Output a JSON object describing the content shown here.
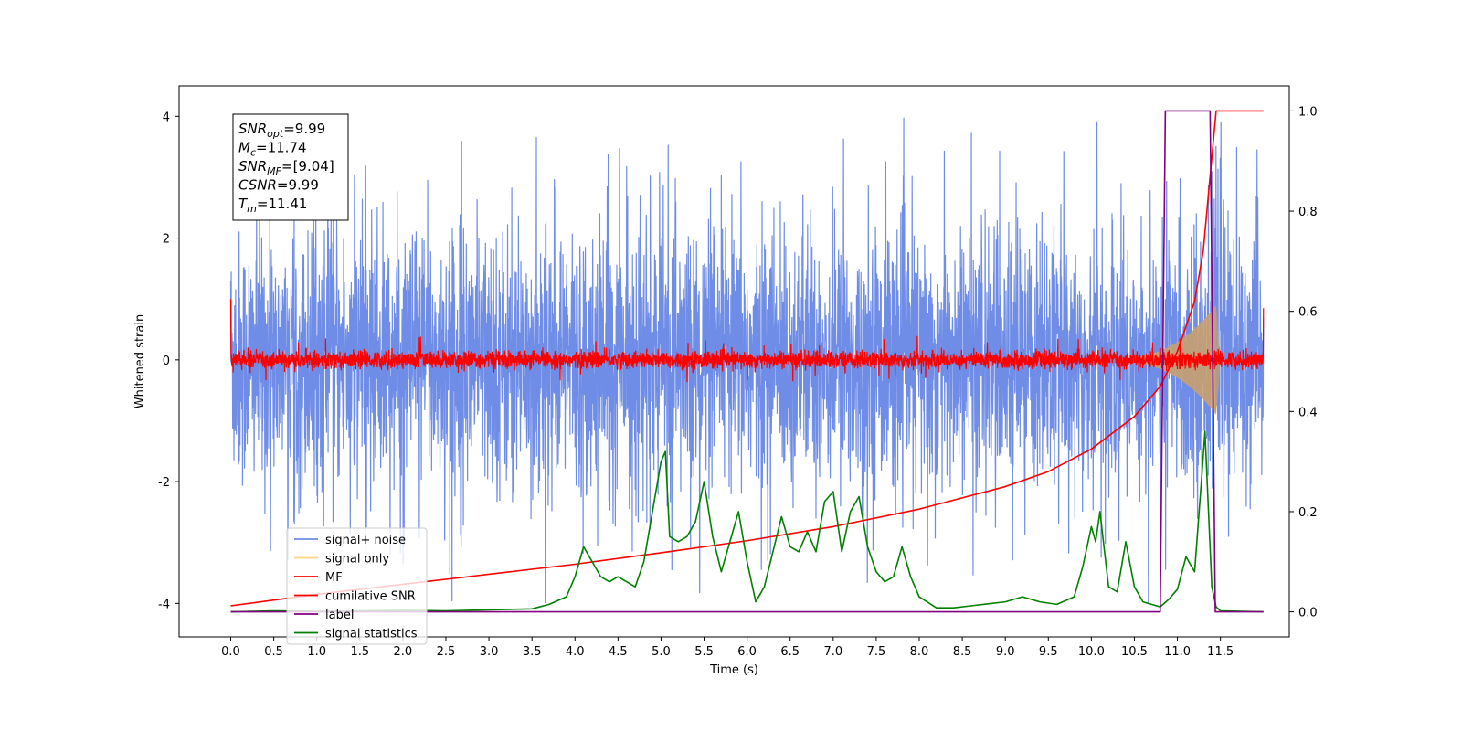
{
  "chart_data": {
    "type": "line",
    "title": "",
    "xlabel": "Time (s)",
    "ylabel": "Whitened strain",
    "y2label": "",
    "xlim": [
      -0.6,
      12.3
    ],
    "ylim": [
      -4.55,
      4.5
    ],
    "y2lim": [
      -0.05,
      1.05
    ],
    "x_ticks": [
      "0.0",
      "0.5",
      "1.0",
      "1.5",
      "2.0",
      "2.5",
      "3.0",
      "3.5",
      "4.0",
      "4.5",
      "5.0",
      "5.5",
      "6.0",
      "6.5",
      "7.0",
      "7.5",
      "8.0",
      "8.5",
      "9.0",
      "9.5",
      "10.0",
      "10.5",
      "11.0",
      "11.5"
    ],
    "y_ticks": [
      "4",
      "2",
      "0",
      "-2",
      "-4"
    ],
    "y2_ticks": [
      "1.0",
      "0.8",
      "0.6",
      "0.4",
      "0.2",
      "0.0"
    ],
    "grid": false,
    "legend_position": "lower-left",
    "legend": [
      {
        "label": "signal+ noise",
        "color": "#6f8de6"
      },
      {
        "label": "signal only",
        "color": "#ffd580"
      },
      {
        "label": "MF",
        "color": "#ff0000"
      },
      {
        "label": "cumilative SNR",
        "color": "#ff0000"
      },
      {
        "label": "label",
        "color": "#800080"
      },
      {
        "label": "signal statistics",
        "color": "#008000"
      }
    ],
    "info_box": {
      "lines": [
        {
          "main": "SNR",
          "sub": "opt",
          "value": "=9.99"
        },
        {
          "main": "M",
          "sub": "c",
          "value": "=11.74"
        },
        {
          "main": "SNR",
          "sub": "MF",
          "value": "=[9.04]"
        },
        {
          "main": "CSNR",
          "sub": "",
          "value": "=9.99"
        },
        {
          "main": "T",
          "sub": "m",
          "value": "=11.41"
        }
      ]
    },
    "series": [
      {
        "name": "signal+ noise",
        "axis": "left",
        "color": "#6f8de6",
        "envelope": {
          "x_range": [
            0.0,
            12.0
          ],
          "typical_amplitude": 1.3,
          "peak_amplitude": 4.1
        }
      },
      {
        "name": "signal only",
        "axis": "left",
        "color": "#ffd580",
        "chirp": {
          "start": 10.0,
          "end": 11.45,
          "max_amplitude": 0.9
        }
      },
      {
        "name": "MF",
        "axis": "left",
        "color": "#ff0000",
        "envelope": {
          "x_range": [
            0.0,
            12.0
          ],
          "typical_amplitude": 0.12,
          "start_value": 1.0,
          "end_value": 0.85
        }
      },
      {
        "name": "cumilative SNR",
        "axis": "right",
        "color": "#ff0000",
        "x": [
          0.0,
          1.0,
          2.0,
          3.0,
          4.0,
          5.0,
          6.0,
          7.0,
          8.0,
          9.0,
          9.5,
          10.0,
          10.5,
          10.8,
          11.0,
          11.2,
          11.3,
          11.38,
          11.45,
          12.0
        ],
        "y": [
          0.012,
          0.035,
          0.055,
          0.075,
          0.095,
          0.118,
          0.142,
          0.17,
          0.205,
          0.25,
          0.28,
          0.325,
          0.39,
          0.45,
          0.52,
          0.62,
          0.72,
          0.87,
          1.0,
          1.0
        ]
      },
      {
        "name": "label",
        "axis": "right",
        "color": "#800080",
        "x": [
          0.0,
          10.8,
          10.86,
          11.38,
          11.44,
          12.0
        ],
        "y": [
          0.0,
          0.0,
          1.0,
          1.0,
          0.0,
          0.0
        ]
      },
      {
        "name": "signal statistics",
        "axis": "right",
        "color": "#008000",
        "x": [
          0.0,
          0.5,
          1.0,
          1.5,
          2.0,
          2.5,
          3.0,
          3.5,
          3.7,
          3.9,
          4.0,
          4.1,
          4.2,
          4.3,
          4.4,
          4.5,
          4.6,
          4.7,
          4.8,
          4.9,
          5.0,
          5.05,
          5.1,
          5.2,
          5.3,
          5.4,
          5.5,
          5.6,
          5.7,
          5.8,
          5.9,
          6.0,
          6.1,
          6.2,
          6.3,
          6.4,
          6.5,
          6.6,
          6.7,
          6.8,
          6.9,
          7.0,
          7.1,
          7.2,
          7.3,
          7.4,
          7.5,
          7.6,
          7.7,
          7.8,
          7.9,
          8.0,
          8.2,
          8.4,
          8.6,
          8.8,
          9.0,
          9.2,
          9.4,
          9.6,
          9.8,
          9.9,
          10.0,
          10.05,
          10.1,
          10.2,
          10.3,
          10.4,
          10.5,
          10.6,
          10.7,
          10.8,
          10.9,
          11.0,
          11.1,
          11.2,
          11.3,
          11.32,
          11.4,
          11.45,
          11.5,
          12.0
        ],
        "y": [
          0.0,
          0.002,
          0.001,
          0.002,
          0.003,
          0.002,
          0.004,
          0.006,
          0.015,
          0.03,
          0.07,
          0.13,
          0.1,
          0.07,
          0.06,
          0.07,
          0.06,
          0.05,
          0.1,
          0.2,
          0.3,
          0.32,
          0.15,
          0.14,
          0.15,
          0.18,
          0.26,
          0.15,
          0.08,
          0.14,
          0.2,
          0.1,
          0.02,
          0.05,
          0.12,
          0.19,
          0.13,
          0.12,
          0.16,
          0.12,
          0.22,
          0.24,
          0.12,
          0.2,
          0.23,
          0.13,
          0.08,
          0.06,
          0.07,
          0.13,
          0.07,
          0.03,
          0.008,
          0.008,
          0.012,
          0.016,
          0.02,
          0.03,
          0.02,
          0.015,
          0.03,
          0.09,
          0.17,
          0.14,
          0.2,
          0.05,
          0.04,
          0.14,
          0.05,
          0.02,
          0.015,
          0.01,
          0.025,
          0.045,
          0.11,
          0.08,
          0.31,
          0.36,
          0.05,
          0.01,
          0.002,
          0.0
        ]
      }
    ]
  }
}
